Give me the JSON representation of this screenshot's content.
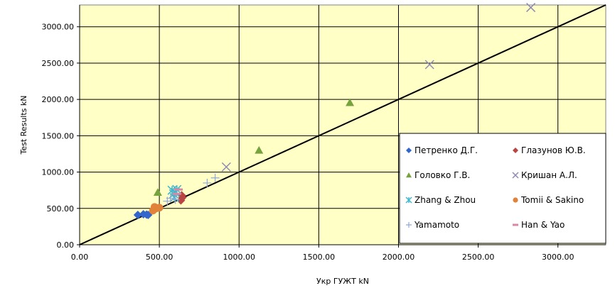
{
  "chart_data": {
    "type": "scatter",
    "xlabel": "Укр ГУЖТ    kN",
    "ylabel": "Test Results  kN",
    "xlim": [
      0,
      3300
    ],
    "ylim": [
      0,
      3300
    ],
    "x_ticks": [
      "0.00",
      "500.00",
      "1000.00",
      "1500.00",
      "2000.00",
      "2500.00",
      "3000.00"
    ],
    "y_ticks": [
      "0.00",
      "500.00",
      "1000.00",
      "1500.00",
      "2000.00",
      "2500.00",
      "3000.00"
    ],
    "x_tick_values": [
      0,
      500,
      1000,
      1500,
      2000,
      2500,
      3000
    ],
    "y_tick_values": [
      0,
      500,
      1000,
      1500,
      2000,
      2500,
      3000
    ],
    "grid": true,
    "plot_background": "#FFFFC6",
    "legend_position": "right-center",
    "reference_line": {
      "type": "y=x",
      "color": "#000000"
    },
    "series": [
      {
        "name": "Петренко Д.Г.",
        "marker": "diamond",
        "color": "#3366CC",
        "points": [
          [
            365,
            410
          ],
          [
            420,
            415
          ],
          [
            430,
            410
          ],
          [
            400,
            420
          ]
        ]
      },
      {
        "name": "Глазунов Ю.В.",
        "marker": "diamond",
        "color": "#B84444",
        "points": [
          [
            635,
            610
          ],
          [
            640,
            680
          ],
          [
            645,
            650
          ]
        ]
      },
      {
        "name": "Головко Г.В.",
        "marker": "triangle",
        "color": "#77A33F",
        "points": [
          [
            490,
            720
          ],
          [
            1125,
            1300
          ],
          [
            1695,
            1955
          ]
        ]
      },
      {
        "name": "Кришан А.Л.",
        "marker": "x",
        "color": "#8E89B5",
        "points": [
          [
            920,
            1070
          ],
          [
            2195,
            2480
          ],
          [
            2830,
            3265
          ]
        ]
      },
      {
        "name": "Zhang & Zhou",
        "marker": "asterisk",
        "color": "#3FB8D0",
        "points": [
          [
            580,
            750
          ],
          [
            590,
            700
          ],
          [
            600,
            720
          ],
          [
            595,
            650
          ],
          [
            610,
            760
          ]
        ]
      },
      {
        "name": "Tomii & Sakino",
        "marker": "circle",
        "color": "#E0823A",
        "points": [
          [
            460,
            470
          ],
          [
            480,
            500
          ],
          [
            500,
            510
          ],
          [
            470,
            520
          ]
        ]
      },
      {
        "name": "Yamamoto",
        "marker": "plus",
        "color": "#8FA8D9",
        "points": [
          [
            550,
            600
          ],
          [
            600,
            620
          ],
          [
            800,
            850
          ],
          [
            850,
            920
          ],
          [
            570,
            640
          ]
        ]
      },
      {
        "name": "Han & Yao",
        "marker": "dash",
        "color": "#DC85A5",
        "points": [
          [
            610,
            700
          ],
          [
            620,
            760
          ]
        ]
      }
    ]
  }
}
